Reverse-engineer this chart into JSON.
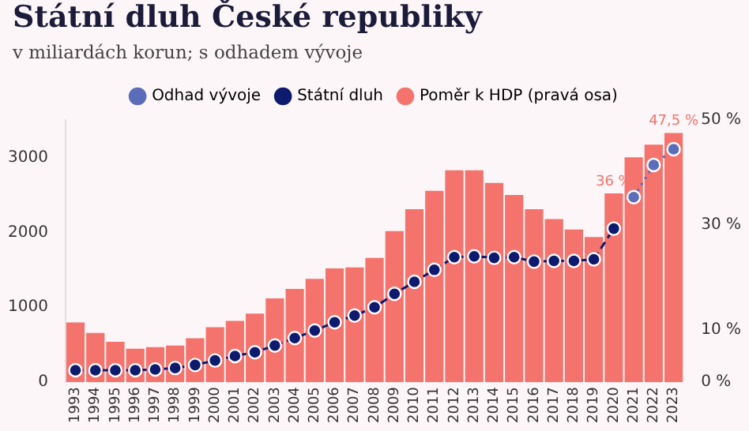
{
  "chart_data": {
    "type": "bar",
    "title": "Státní dluh České republiky",
    "subtitle": "v miliardách korun; s odhadem vývoje",
    "categories": [
      "1993",
      "1994",
      "1995",
      "1996",
      "1997",
      "1998",
      "1999",
      "2000",
      "2001",
      "2002",
      "2003",
      "2004",
      "2005",
      "2006",
      "2007",
      "2008",
      "2009",
      "2010",
      "2011",
      "2012",
      "2013",
      "2014",
      "2015",
      "2016",
      "2017",
      "2018",
      "2019",
      "2020",
      "2021",
      "2022",
      "2023"
    ],
    "series": [
      {
        "name": "Odhad vývoje",
        "type": "line",
        "color": "#5b6cb8",
        "line_style": "dotted",
        "values": [
          null,
          null,
          null,
          null,
          null,
          null,
          null,
          null,
          null,
          null,
          null,
          null,
          null,
          null,
          null,
          null,
          null,
          null,
          null,
          null,
          null,
          null,
          null,
          null,
          null,
          null,
          null,
          null,
          2470,
          2900,
          3110
        ]
      },
      {
        "name": "Státní dluh",
        "type": "line",
        "color": "#0d1a6e",
        "line_style": "dashed",
        "values": [
          160,
          160,
          160,
          160,
          170,
          190,
          230,
          290,
          350,
          400,
          490,
          590,
          690,
          800,
          890,
          1000,
          1180,
          1340,
          1500,
          1670,
          1680,
          1660,
          1670,
          1610,
          1620,
          1620,
          1640,
          2050,
          null,
          null,
          null
        ]
      },
      {
        "name": "Poměr k HDP (pravá osa)",
        "axis": "y2",
        "color": "#f4736c",
        "values": [
          11.4,
          9.4,
          7.7,
          6.4,
          6.7,
          7.0,
          8.4,
          10.5,
          11.7,
          13.1,
          16.0,
          17.8,
          19.7,
          21.7,
          21.9,
          23.7,
          28.8,
          33.0,
          36.5,
          40.4,
          40.4,
          38.0,
          35.7,
          33.0,
          31.1,
          29.1,
          27.7,
          36,
          42.9,
          45.3,
          47.5
        ],
        "value_labels": [
          null,
          null,
          null,
          null,
          null,
          null,
          null,
          null,
          null,
          null,
          null,
          null,
          null,
          null,
          null,
          null,
          null,
          null,
          null,
          null,
          null,
          null,
          null,
          null,
          null,
          null,
          null,
          "36 %",
          null,
          null,
          "47,5 %"
        ]
      }
    ],
    "ylim": [
      0,
      3500
    ],
    "yticks": [
      0,
      1000,
      2000,
      3000
    ],
    "y2lim": [
      0,
      50
    ],
    "y2ticks": [
      {
        "value": 0,
        "label": "0 %"
      },
      {
        "value": 10,
        "label": "10 %"
      },
      {
        "value": 30,
        "label": "30 %"
      },
      {
        "value": 50,
        "label": "50 %"
      }
    ],
    "marker": "circle",
    "legend": "top",
    "grid": false
  }
}
